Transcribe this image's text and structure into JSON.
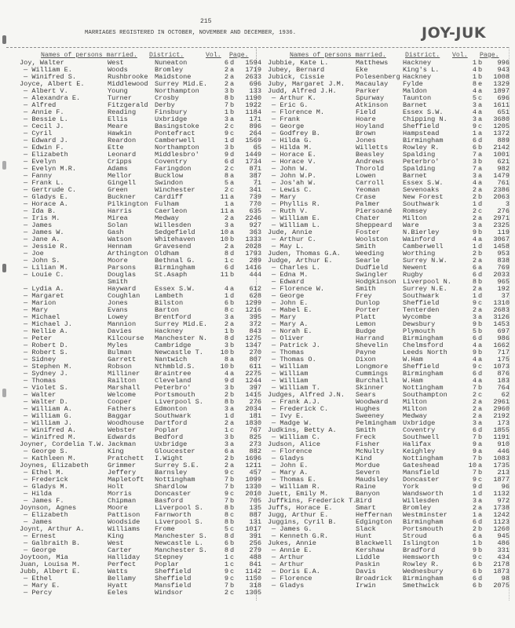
{
  "page_number": "215",
  "title": "MARRIAGES REGISTERED IN OCTOBER, NOVEMBER AND DECEMBER, 1936.",
  "name_range": "JOY-JUK",
  "headers": {
    "names": "Names of persons married.",
    "district": "District.",
    "vol": "Vol.",
    "page": "Page."
  },
  "left": [
    [
      "Joy, Walter",
      "West",
      "Nuneaton",
      "6",
      "d",
      "1594"
    ],
    [
      "— William E.",
      "Woods",
      "Bromley",
      "2",
      "a",
      "1719"
    ],
    [
      "— Winifred S.",
      "Rushbrooke",
      "Maidstone",
      "2",
      "a",
      "2633"
    ],
    [
      "Joyce, Albert E.",
      "Middlewood",
      "Surrey Mid.E.",
      "2",
      "a",
      "696"
    ],
    [
      "— Albert V.",
      "Young",
      "Northampton",
      "3",
      "b",
      "133"
    ],
    [
      "— Alexandra E.",
      "Turner",
      "Crosby",
      "8",
      "b",
      "1190"
    ],
    [
      "— Alfred",
      "Fitzgerald",
      "Derby",
      "7",
      "b",
      "1922"
    ],
    [
      "— Annie F.",
      "Reading",
      "Finsbury",
      "1",
      "b",
      "1184"
    ],
    [
      "— Bessie L.",
      "Ellis",
      "Uxbridge",
      "3",
      "a",
      "171"
    ],
    [
      "— Cecil J.",
      "Meare",
      "Basingstoke",
      "2",
      "c",
      "896"
    ],
    [
      "— Cyril",
      "Hawkin",
      "Pontefract",
      "9",
      "c",
      "264"
    ],
    [
      "— Edward J.",
      "Reardon",
      "Camberwell",
      "1",
      "d",
      "1569"
    ],
    [
      "— Edwin F.",
      "Ette",
      "Northampton",
      "3",
      "b",
      "65"
    ],
    [
      "— Elizabeth",
      "Leonard",
      "Middlesbro'",
      "9",
      "d",
      "1449"
    ],
    [
      "— Evelyn",
      "Cripps",
      "Coventry",
      "6",
      "d",
      "1734"
    ],
    [
      "— Evelyn M.R.",
      "Adams",
      "Faringdon",
      "2",
      "c",
      "871"
    ],
    [
      "— Fanny",
      "Mellor",
      "Bucklow",
      "8",
      "a",
      "387"
    ],
    [
      "— Frank L.",
      "Gingell",
      "Swindon",
      "5",
      "a",
      "71"
    ],
    [
      "— Gertrude C.",
      "Green",
      "Winchester",
      "2",
      "c",
      "341"
    ],
    [
      "— Gladys E.",
      "Buckner",
      "Cardiff",
      "11",
      "a",
      "739"
    ],
    [
      "— Horace A.",
      "Pilkington",
      "Fulham",
      "1",
      "a",
      "770"
    ],
    [
      "— Ida B.",
      "Harris",
      "Caerleon",
      "11",
      "a",
      "635"
    ],
    [
      "— Iris M.",
      "Mirea",
      "Medway",
      "2",
      "a",
      "2246"
    ],
    [
      "— James",
      "Solan",
      "Willesden",
      "3",
      "a",
      "927"
    ],
    [
      "— James W.",
      "Gash",
      "Sedgefield",
      "10",
      "a",
      "363"
    ],
    [
      "— Jane A.",
      "Watson",
      "Whitehaven",
      "10",
      "b",
      "1333"
    ],
    [
      "— Jessie R.",
      "Hennam",
      "Gravesend",
      "2",
      "a",
      "2028"
    ],
    [
      "— Joe",
      "Arthington",
      "Oldham",
      "8",
      "d",
      "1793"
    ],
    [
      "— John S.",
      "Moore",
      "Bethnal G.",
      "1",
      "c",
      "289"
    ],
    [
      "— Lilian M.",
      "Parsons",
      "Birmingham",
      "6",
      "d",
      "1416"
    ],
    [
      "— Louie C.",
      "Douglas",
      "St.Asaph",
      "11",
      "b",
      "444"
    ],
    [
      "",
      "Smith",
      "",
      "",
      "",
      ""
    ],
    [
      "— Lydia A.",
      "Hayward",
      "Essex S.W.",
      "4",
      "a",
      "612"
    ],
    [
      "— Margaret",
      "Coughlan",
      "Lambeth",
      "1",
      "d",
      "628"
    ],
    [
      "— Marion",
      "Jones",
      "Bilston",
      "6",
      "b",
      "1299"
    ],
    [
      "— Mary",
      "Evans",
      "Barton",
      "8",
      "c",
      "1216"
    ],
    [
      "— Michael",
      "Lowey",
      "Brentford",
      "3",
      "a",
      "395"
    ],
    [
      "— Michael J.",
      "Mannion",
      "Surrey Mid.E.",
      "2",
      "a",
      "372"
    ],
    [
      "— Nellie A.",
      "Davies",
      "Hackney",
      "1",
      "b",
      "843"
    ],
    [
      "— Peter",
      "Kilcourse",
      "Manchester N.",
      "8",
      "d",
      "1275"
    ],
    [
      "— Robert D.",
      "Myles",
      "Cambridge",
      "3",
      "b",
      "1347"
    ],
    [
      "— Robert S.",
      "Bulman",
      "Newcastle T.",
      "10",
      "b",
      "270"
    ],
    [
      "— Sidney",
      "Garrett",
      "Nantwich",
      "8",
      "a",
      "807"
    ],
    [
      "— Stephen M.",
      "Robson",
      "Nthmbld.S.",
      "10",
      "b",
      "611"
    ],
    [
      "— Sydney J.",
      "Milliner",
      "Braintree",
      "4",
      "a",
      "2275"
    ],
    [
      "— Thomas",
      "Railton",
      "Cleveland",
      "9",
      "d",
      "1244"
    ],
    [
      "— Violet S.",
      "Marshall",
      "Peterbro'",
      "3",
      "b",
      "397"
    ],
    [
      "— Walter",
      "Welcome",
      "Portsmouth",
      "2",
      "b",
      "1415"
    ],
    [
      "— Walter D.",
      "Cooper",
      "Liverpool S.",
      "8",
      "b",
      "276"
    ],
    [
      "— William A.",
      "Fathers",
      "Edmonton",
      "3",
      "a",
      "2034"
    ],
    [
      "— William G.",
      "Baggar",
      "Southwark",
      "1",
      "d",
      "181"
    ],
    [
      "— William J.",
      "Woodhouse",
      "Dartford",
      "2",
      "a",
      "1830"
    ],
    [
      "— Winifred A.",
      "Webster",
      "Poplar",
      "1",
      "c",
      "767"
    ],
    [
      "— Winifred M.",
      "Edwards",
      "Bedford",
      "3",
      "b",
      "825"
    ],
    [
      "Joyner, Cordelia T.W.",
      "Jackman",
      "Uxbridge",
      "3",
      "a",
      "273"
    ],
    [
      "— George S.",
      "King",
      "Gloucester",
      "6",
      "a",
      "882"
    ],
    [
      "— Kathleen M.",
      "Pratchett",
      "I.Wight",
      "2",
      "b",
      "1696"
    ],
    [
      "Joynes, Elizabeth",
      "Grimmer",
      "Surrey S.E.",
      "2",
      "a",
      "1211"
    ],
    [
      "— Ethel M.",
      "Jeffery",
      "Barnsley",
      "9",
      "c",
      "457"
    ],
    [
      "— Frederick",
      "Mapletoft",
      "Nottingham",
      "7",
      "b",
      "1099"
    ],
    [
      "— Gladys M.",
      "Holt",
      "Shardlow",
      "7",
      "b",
      "1330"
    ],
    [
      "— Hilda",
      "Morris",
      "Doncaster",
      "9",
      "c",
      "2010"
    ],
    [
      "— James F.",
      "Chipman",
      "Basford",
      "7",
      "b",
      "705"
    ],
    [
      "Joynson, Agnes",
      "Moore",
      "Liverpool S.",
      "8",
      "b",
      "135"
    ],
    [
      "— Elizabeth",
      "Pattison",
      "Farnworth",
      "8",
      "c",
      "887"
    ],
    [
      "— James",
      "Woodside",
      "Liverpool S.",
      "8",
      "b",
      "131"
    ],
    [
      "Joynt, Arthur A.",
      "Williams",
      "Frome",
      "5",
      "c",
      "1017"
    ],
    [
      "— Ernest",
      "King",
      "Manchester S.",
      "8",
      "d",
      "391"
    ],
    [
      "— Galbraith B.",
      "West",
      "Newcastle L.",
      "6",
      "b",
      "256"
    ],
    [
      "— George",
      "Carter",
      "Manchester S.",
      "8",
      "d",
      "279"
    ],
    [
      "Joytoon, Mia",
      "Halliday",
      "Stepney",
      "1",
      "c",
      "488"
    ],
    [
      "Juan, Louisa M.",
      "Perfect",
      "Poplar",
      "1",
      "c",
      "841"
    ],
    [
      "Jubb, Albert E.",
      "Watts",
      "Sheffield",
      "9",
      "c",
      "1142"
    ],
    [
      "— Ethel",
      "Bellamy",
      "Sheffield",
      "9",
      "c",
      "1150"
    ],
    [
      "— Mary E.",
      "Hyatt",
      "Mansfield",
      "7",
      "b",
      "318"
    ],
    [
      "— Percy",
      "Eeles",
      "Windsor",
      "2",
      "c",
      "1305"
    ]
  ],
  "right": [
    [
      "Jubbie, Kate L.",
      "Matthews",
      "Hackney",
      "1",
      "b",
      "996"
    ],
    [
      "Jubey, Bernard",
      "Eke",
      "King's L.",
      "4",
      "b",
      "943"
    ],
    [
      "Jubick, Cissie",
      "Polesenberg",
      "Hackney",
      "1",
      "b",
      "1008"
    ],
    [
      "Juby, Margaret J.M.",
      "Macaulay",
      "Fylde",
      "8",
      "e",
      "1329"
    ],
    [
      "Judd, Alfred J.H.",
      "Parker",
      "Maldon",
      "4",
      "a",
      "1897"
    ],
    [
      "— Arthur K.",
      "Spurway",
      "Taunton",
      "5",
      "c",
      "696"
    ],
    [
      "— Eric G.",
      "Atkinson",
      "Barnet",
      "3",
      "a",
      "1611"
    ],
    [
      "— Florence M.",
      "Field",
      "Essex S.W.",
      "4",
      "a",
      "651"
    ],
    [
      "— Frank",
      "Hoare",
      "Chipping N.",
      "3",
      "a",
      "3680"
    ],
    [
      "— George",
      "Hoyland",
      "Sheffield",
      "9",
      "c",
      "1205"
    ],
    [
      "— Godfrey B.",
      "Brown",
      "Hampstead",
      "1",
      "a",
      "1372"
    ],
    [
      "— Hilda G.",
      "Jones",
      "Birmingham",
      "6",
      "d",
      "889"
    ],
    [
      "— Hilda M.",
      "Willetts",
      "Rowley R.",
      "6",
      "b",
      "2142"
    ],
    [
      "— Horace E.",
      "Beasley",
      "Spalding",
      "7",
      "a",
      "1001"
    ],
    [
      "— Horace V.",
      "Andrews",
      "Peterbro'",
      "3",
      "b",
      "621"
    ],
    [
      "— John W.",
      "Thorold",
      "Spalding",
      "7",
      "a",
      "982"
    ],
    [
      "— John W.P.",
      "Lowen",
      "Barnet",
      "3",
      "a",
      "1479"
    ],
    [
      "— Jos'ah W.",
      "Carroll",
      "Essex S.W.",
      "4",
      "a",
      "761"
    ],
    [
      "— Lewis C.",
      "Yeoman",
      "Sevenoaks",
      "2",
      "a",
      "2386"
    ],
    [
      "— Mary",
      "Crase",
      "New Forest",
      "2",
      "b",
      "2063"
    ],
    [
      "— Phyllis R.",
      "Palmer",
      "Southwark",
      "1",
      "d",
      "3"
    ],
    [
      "— Ruth V.",
      "Piersoané",
      "Romsey",
      "2",
      "c",
      "276"
    ],
    [
      "— William E.",
      "Chater",
      "Milton",
      "2",
      "a",
      "2971"
    ],
    [
      "— William L.",
      "Sheppeard",
      "Ware",
      "3",
      "a",
      "2325"
    ],
    [
      "Jude, Annie",
      "Foster",
      "N.Bierley",
      "9",
      "b",
      "119"
    ],
    [
      "— Arthur C.",
      "Woolston",
      "Wainford",
      "4",
      "a",
      "3067"
    ],
    [
      "— May L.",
      "Smith",
      "Camberwell",
      "1",
      "d",
      "1458"
    ],
    [
      "Juden, Thomas G.A.",
      "Weeding",
      "Worthing",
      "2",
      "b",
      "953"
    ],
    [
      "Judge, Arthur E.",
      "Searle",
      "Surrey N.W.",
      "2",
      "a",
      "838"
    ],
    [
      "— Charles L.",
      "Dudfield",
      "Newent",
      "6",
      "a",
      "769"
    ],
    [
      "— Edna M.",
      "Swingler",
      "Rugby",
      "6",
      "d",
      "2033"
    ],
    [
      "— Edward",
      "Hodgkinson",
      "Liverpool N.",
      "8",
      "b",
      "965"
    ],
    [
      "— Florence W.",
      "Smith",
      "Surrey N.E.",
      "2",
      "a",
      "192"
    ],
    [
      "— George",
      "Frey",
      "Southwark",
      "1",
      "d",
      "37"
    ],
    [
      "— John E.",
      "Dunlop",
      "Sheffield",
      "9",
      "c",
      "1310"
    ],
    [
      "— Mabel E.",
      "Porter",
      "Tenterden",
      "2",
      "a",
      "2683"
    ],
    [
      "— Mary",
      "Platt",
      "Wycombe",
      "3",
      "a",
      "3126"
    ],
    [
      "— Mary A.",
      "Lemon",
      "Dewsbury",
      "9",
      "b",
      "1453"
    ],
    [
      "— Norah E.",
      "Budge",
      "Plymouth",
      "5",
      "b",
      "697"
    ],
    [
      "— Oliver",
      "Harrand",
      "Birmingham",
      "6",
      "d",
      "986"
    ],
    [
      "— Patrick J.",
      "Shevelin",
      "Chelmsford",
      "4",
      "a",
      "1662"
    ],
    [
      "— Thomas",
      "Payne",
      "Leeds North",
      "9",
      "b",
      "717"
    ],
    [
      "— Thomas O.",
      "Dixon",
      "W.Ham",
      "4",
      "a",
      "175"
    ],
    [
      "— William",
      "Longmore",
      "Sheffield",
      "9",
      "c",
      "1073"
    ],
    [
      "— William",
      "Cummings",
      "Birmingham",
      "6",
      "d",
      "876"
    ],
    [
      "— William",
      "Burchall",
      "W.Ham",
      "4",
      "a",
      "183"
    ],
    [
      "— William T.",
      "Skinner",
      "Nottingham",
      "7",
      "b",
      "764"
    ],
    [
      "Judges, Alfred J.N.",
      "Sears",
      "Southampton",
      "2",
      "c",
      "62"
    ],
    [
      "— Frank A.J.",
      "Woodward",
      "Milton",
      "2",
      "a",
      "2961"
    ],
    [
      "— Frederick C.",
      "Hughes",
      "Milton",
      "2",
      "a",
      "2960"
    ],
    [
      "— Ivy E.",
      "Sweeney",
      "Medway",
      "2",
      "a",
      "2192"
    ],
    [
      "— Madge W.",
      "Pelmingham",
      "Uxbridge",
      "3",
      "a",
      "173"
    ],
    [
      "Judkins, Betty A.",
      "Smith",
      "Coventry",
      "6",
      "d",
      "1855"
    ],
    [
      "— William C.",
      "Freck",
      "Southwell",
      "7",
      "b",
      "1191"
    ],
    [
      "Judson, Alice",
      "Fisher",
      "Halifax",
      "9",
      "a",
      "910"
    ],
    [
      "— Florence",
      "McNulty",
      "Keighley",
      "9",
      "a",
      "446"
    ],
    [
      "— Gladys",
      "Kind",
      "Nottingham",
      "7",
      "b",
      "1083"
    ],
    [
      "— John E.",
      "Mordue",
      "Gateshead",
      "10",
      "a",
      "1735"
    ],
    [
      "— Mary A.",
      "Severn",
      "Mansfield",
      "7",
      "b",
      "213"
    ],
    [
      "— Thomas E.",
      "Maudsley",
      "Doncaster",
      "9",
      "c",
      "1877"
    ],
    [
      "— William R.",
      "Raine",
      "York",
      "9",
      "d",
      "96"
    ],
    [
      "Juett, Emily M.",
      "Banyon",
      "Wandsworth",
      "1",
      "d",
      "1132"
    ],
    [
      "Juffkins, Frederick T.",
      "Bird",
      "Willesden",
      "3",
      "a",
      "972"
    ],
    [
      "Juffs, Horace E.",
      "Smart",
      "Bromley",
      "2",
      "a",
      "1738"
    ],
    [
      "Jugg, Arthur E.",
      "Heffernan",
      "Westminster",
      "1",
      "a",
      "1242"
    ],
    [
      "Juggins, Cyril B.",
      "Edgington",
      "Birmingham",
      "6",
      "d",
      "1123"
    ],
    [
      "— James G.",
      "Slack",
      "Portsmouth",
      "2",
      "b",
      "1260"
    ],
    [
      "— Kenneth G.R.",
      "Hunt",
      "Stroud",
      "6",
      "a",
      "945"
    ],
    [
      "Jukes, Annie",
      "Blackwell",
      "Islington",
      "1",
      "b",
      "486"
    ],
    [
      "— Annie E.",
      "Kershaw",
      "Bradford",
      "9",
      "b",
      "331"
    ],
    [
      "— Arthur",
      "Liddle",
      "Hemsworth",
      "9",
      "c",
      "434"
    ],
    [
      "— Arthur",
      "Paskin",
      "Rowley R.",
      "6",
      "b",
      "2178"
    ],
    [
      "— Doris E.A.",
      "Davis",
      "Wednesbury",
      "6",
      "b",
      "1873"
    ],
    [
      "— Florence",
      "Broadrick",
      "Birmingham",
      "6",
      "d",
      "98"
    ],
    [
      "— Gladys",
      "Irwin",
      "Smethwick",
      "6",
      "b",
      "2075"
    ]
  ]
}
